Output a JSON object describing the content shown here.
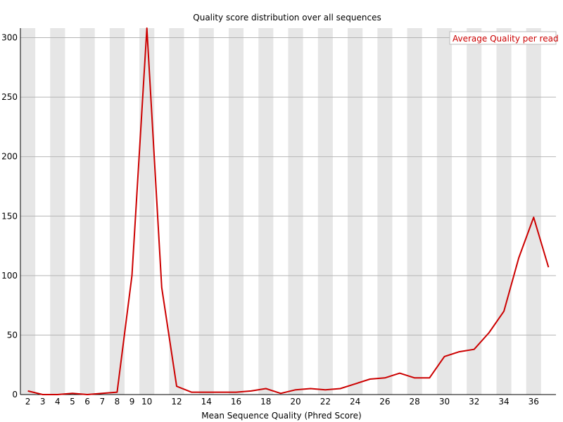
{
  "chart_data": {
    "type": "line",
    "title": "Quality score distribution over all sequences",
    "xlabel": "Mean Sequence Quality (Phred Score)",
    "ylabel": "",
    "x": [
      2,
      3,
      4,
      5,
      6,
      7,
      8,
      9,
      10,
      11,
      12,
      13,
      14,
      15,
      16,
      17,
      18,
      19,
      20,
      21,
      22,
      23,
      24,
      25,
      26,
      27,
      28,
      29,
      30,
      31,
      32,
      33,
      34,
      35,
      36,
      37
    ],
    "x_tick_labels": [
      "2",
      "3",
      "4",
      "5",
      "6",
      "7",
      "8",
      "9",
      "10",
      "12",
      "14",
      "16",
      "18",
      "20",
      "22",
      "24",
      "26",
      "28",
      "30",
      "32",
      "34",
      "36"
    ],
    "y_ticks": [
      0,
      50,
      100,
      150,
      200,
      250,
      300
    ],
    "ylim": [
      0,
      308
    ],
    "grid": true,
    "legend_position": "top-right",
    "series": [
      {
        "name": "Average Quality per read",
        "color": "#cc0000",
        "values": [
          3,
          0,
          0,
          1,
          0,
          1,
          2,
          100,
          308,
          90,
          7,
          2,
          2,
          2,
          2,
          3,
          5,
          1,
          4,
          5,
          4,
          5,
          9,
          13,
          14,
          18,
          14,
          14,
          32,
          36,
          38,
          52,
          70,
          115,
          149,
          107
        ]
      }
    ]
  }
}
